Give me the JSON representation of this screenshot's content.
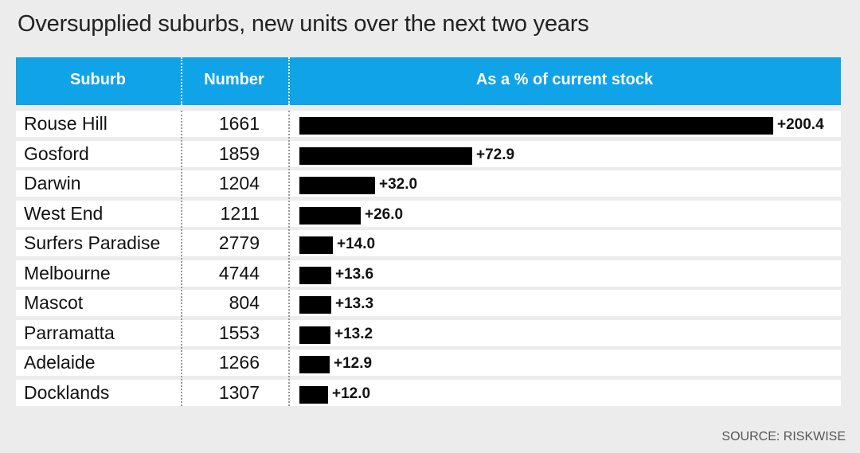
{
  "title": "Oversupplied suburbs, new units over the next two years",
  "source": "SOURCE: RISKWISE",
  "colors": {
    "header": "#10a3e8",
    "bar": "#000000",
    "background": "#ececec"
  },
  "chart_data": {
    "type": "bar",
    "title": "Oversupplied suburbs, new units over the next two years",
    "columns": [
      "Suburb",
      "Number",
      "As a % of current stock"
    ],
    "categories": [
      "Rouse Hill",
      "Gosford",
      "Darwin",
      "West End",
      "Surfers Paradise",
      "Melbourne",
      "Mascot",
      "Parramatta",
      "Adelaide",
      "Docklands"
    ],
    "numbers": [
      "1661",
      "1859",
      "1204",
      "1211",
      "2779",
      "4744",
      "804",
      "1553",
      "1266",
      "1307"
    ],
    "values": [
      200.4,
      72.9,
      32.0,
      26.0,
      14.0,
      13.6,
      13.3,
      13.2,
      12.9,
      12.0
    ],
    "value_labels": [
      "+200.4",
      "+72.9",
      "+32.0",
      "+26.0",
      "+14.0",
      "+13.6",
      "+13.3",
      "+13.2",
      "+12.9",
      "+12.0"
    ],
    "orientation": "horizontal"
  }
}
